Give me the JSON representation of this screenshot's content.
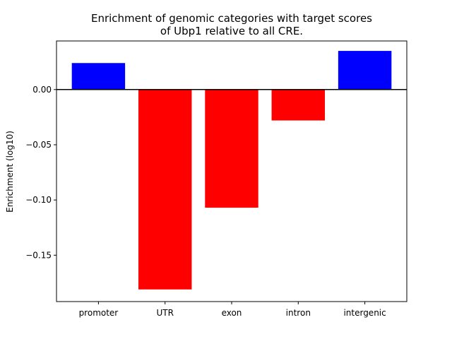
{
  "chart_data": {
    "type": "bar",
    "title_line1": "Enrichment of genomic categories with target scores",
    "title_line2": "of Ubp1 relative to all CRE.",
    "ylabel": "Enrichment (log10)",
    "xlabel": "",
    "categories": [
      "promoter",
      "UTR",
      "exon",
      "intron",
      "intergenic"
    ],
    "values": [
      0.024,
      -0.181,
      -0.107,
      -0.028,
      0.035
    ],
    "colors": [
      "#0000ff",
      "#ff0000",
      "#ff0000",
      "#ff0000",
      "#0000ff"
    ],
    "ylim": [
      -0.192,
      0.044
    ],
    "yticks": [
      0.0,
      -0.05,
      -0.1,
      -0.15
    ],
    "ytick_labels": [
      "0.00",
      "−0.05",
      "−0.10",
      "−0.15"
    ],
    "zero_line": true,
    "grid": false
  }
}
